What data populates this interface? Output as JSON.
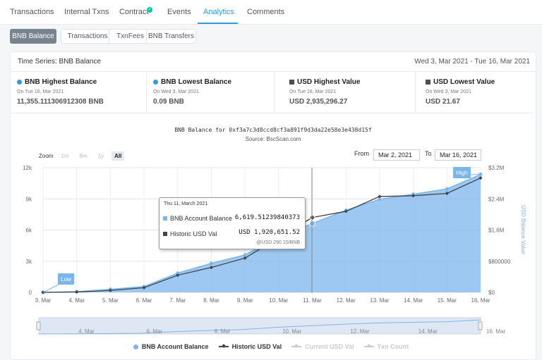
{
  "tabs": [
    {
      "label": "Transactions"
    },
    {
      "label": "Internal Txns"
    },
    {
      "label": "Contract"
    },
    {
      "label": "Events"
    },
    {
      "label": "Analytics"
    },
    {
      "label": "Comments"
    }
  ],
  "subtabs": [
    "BNB Balance",
    "Transactions",
    "TxnFees",
    "BNB Transfers"
  ],
  "time_series": {
    "title": "Time Series: BNB Balance",
    "range": "Wed 3, Mar 2021 - Tue 16, Mar 2021"
  },
  "stats": [
    {
      "title": "BNB Highest Balance",
      "date": "On Tue 16, Mar 2021",
      "value": "11,355.111306912308 BNB"
    },
    {
      "title": "BNB Lowest Balance",
      "date": "On Wed 3, Mar 2021",
      "value": "0.09 BNB"
    },
    {
      "title": "USD Highest Value",
      "date": "On Tue 16, Mar 2021",
      "value": "USD 2,935,296.27"
    },
    {
      "title": "USD Lowest Value",
      "date": "On Wed 3, Mar 2021",
      "value": "USD 21.67"
    }
  ],
  "chart_header": {
    "title": "BNB Balance for 0xf3a7c3d8ccd8cf3a891f9d3da22e58e3e438d15f",
    "subtitle": "Source: BscScan.com"
  },
  "zoom": {
    "label": "Zoom",
    "buttons": [
      "1m",
      "6m",
      "1y",
      "All"
    ]
  },
  "range": {
    "from_label": "From",
    "from_value": "Mar 2, 2021",
    "to_label": "To",
    "to_value": "Mar 16, 2021"
  },
  "tooltip": {
    "date": "Thu 11, March 2021",
    "bnb_label": "BNB Account Balance",
    "bnb_value": "6,619.51239840373",
    "usd_label": "Historic USD Val",
    "usd_value": "USD 1,920,651.52",
    "note": "@USD 290.15/BNB"
  },
  "chart_data": {
    "type": "area",
    "categories": [
      "3. Mar",
      "4. Mar",
      "5. Mar",
      "6. Mar",
      "7. Mar",
      "8. Mar",
      "9. Mar",
      "10. Mar",
      "11. Mar",
      "12. Mar",
      "13. Mar",
      "14. Mar",
      "15. Mar",
      "16. Mar"
    ],
    "y_left_ticks": [
      "0",
      "3k",
      "6k",
      "9k",
      "12k"
    ],
    "y_left_range": [
      0,
      12000
    ],
    "y_right_ticks": [
      "$0",
      "$800000",
      "$1.6M",
      "$2.4M",
      "$3.2M"
    ],
    "y_right_range": [
      0,
      3200000
    ],
    "y_right_label": "USD Balance Value",
    "series": [
      {
        "name": "BNB Account Balance",
        "axis": "left",
        "values": [
          0.09,
          60,
          300,
          560,
          1850,
          2800,
          3600,
          5400,
          6619.5,
          7900,
          8950,
          9450,
          9950,
          11355
        ]
      },
      {
        "name": "Historic USD Val",
        "axis": "right",
        "values": [
          21.67,
          10000,
          50000,
          120000,
          440000,
          640000,
          880000,
          1400000,
          1920651.52,
          2080000,
          2460000,
          2480000,
          2540000,
          2935296.27
        ]
      }
    ],
    "flags": [
      {
        "label": "Low"
      },
      {
        "label": "High"
      }
    ],
    "navigator_ticks": [
      "4. Mar",
      "6. Mar",
      "8. Mar",
      "10. Mar",
      "12. Mar",
      "14. Mar",
      "16. Mar"
    ],
    "legend": [
      {
        "label": "BNB Account Balance",
        "enabled": true
      },
      {
        "label": "Historic USD Val",
        "enabled": true
      },
      {
        "label": "Current USD Val",
        "enabled": false
      },
      {
        "label": "Txn Count",
        "enabled": false
      }
    ]
  }
}
